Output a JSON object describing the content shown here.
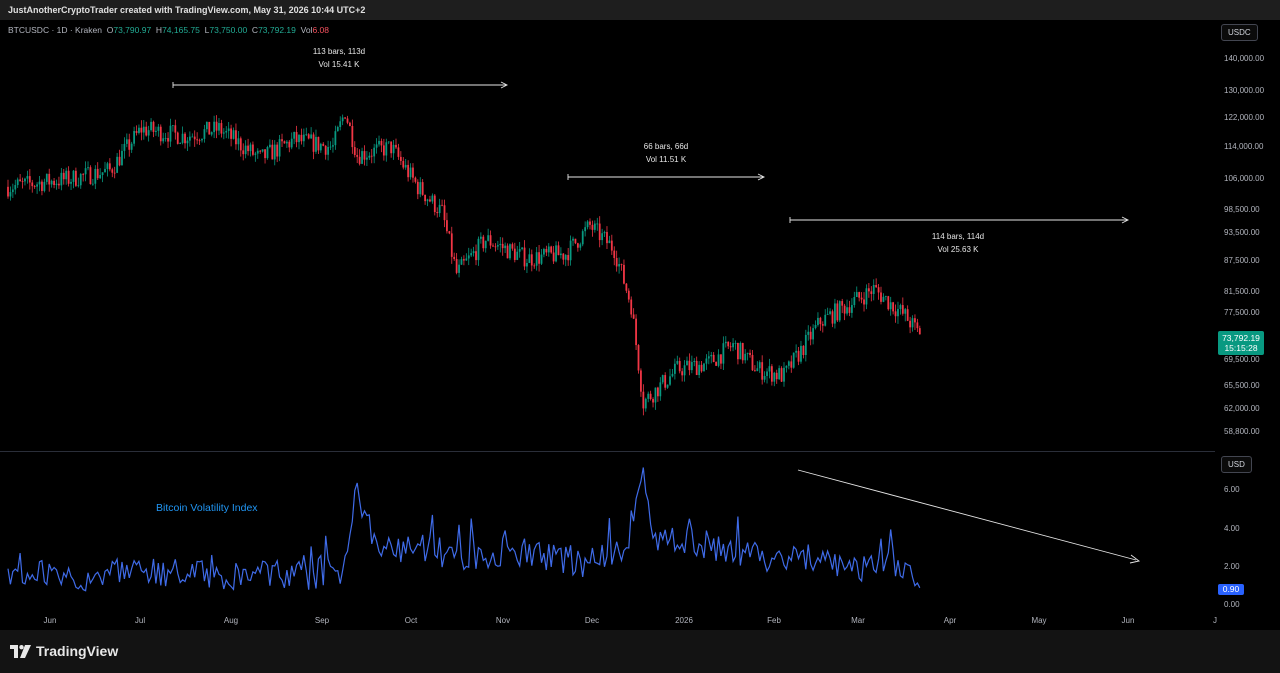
{
  "header": {
    "credit": "JustAnotherCryptoTrader created with TradingView.com, May 31, 2026 10:44 UTC+2"
  },
  "legend": {
    "symbol": "BTCUSDC · 1D · Kraken",
    "open_label": "O",
    "open": "73,790.97",
    "high_label": "H",
    "high": "74,165.75",
    "low_label": "L",
    "low": "73,750.00",
    "close_label": "C",
    "close": "73,792.19",
    "vol_label": "Vol",
    "vol": "6.08"
  },
  "price_axis": {
    "unit": "USDC",
    "ticks": [
      "140,000.00",
      "130,000.00",
      "122,000.00",
      "114,000.00",
      "106,000.00",
      "98,500.00",
      "93,500.00",
      "87,500.00",
      "81,500.00",
      "77,500.00",
      "69,500.00",
      "65,500.00",
      "62,000.00",
      "58,800.00"
    ],
    "last_price": "73,792.19",
    "countdown": "15:15:28"
  },
  "vol_axis": {
    "unit": "USD",
    "ticks": [
      "6.00",
      "4.00",
      "2.00",
      "0.00"
    ],
    "last_value": "0.90"
  },
  "x_axis": {
    "ticks": [
      "Jun",
      "Jul",
      "Aug",
      "Sep",
      "Oct",
      "Nov",
      "Dec",
      "2026",
      "Feb",
      "Mar",
      "Apr",
      "May",
      "Jun",
      "J"
    ]
  },
  "measures": [
    {
      "line1": "113 bars, 113d",
      "line2": "Vol 15.41 K"
    },
    {
      "line1": "66 bars, 66d",
      "line2": "Vol 11.51 K"
    },
    {
      "line1": "114 bars, 114d",
      "line2": "Vol 25.63 K"
    }
  ],
  "indicator": {
    "title": "Bitcoin Volatility Index"
  },
  "brand": {
    "name": "TradingView"
  },
  "colors": {
    "up": "#089981",
    "down": "#f23645",
    "volatility": "#3f6be8",
    "accent": "#2962ff"
  },
  "chart_data": [
    {
      "type": "candlestick",
      "symbol": "BTCUSDC",
      "interval": "1D",
      "exchange": "Kraken",
      "ylim": [
        57000,
        145000
      ],
      "y_scale": "log",
      "x": [
        "2025-05-20",
        "2025-06-15",
        "2025-07-01",
        "2025-07-14",
        "2025-08-01",
        "2025-08-15",
        "2025-09-01",
        "2025-09-15",
        "2025-10-01",
        "2025-10-06",
        "2025-10-11",
        "2025-10-25",
        "2025-11-05",
        "2025-11-15",
        "2025-11-21",
        "2025-12-03",
        "2025-12-20",
        "2026-01-05",
        "2026-01-15",
        "2026-01-25",
        "2026-02-01",
        "2026-02-06",
        "2026-02-20",
        "2026-03-05",
        "2026-03-15",
        "2026-03-25",
        "2026-04-05",
        "2026-04-20",
        "2026-05-05",
        "2026-05-12",
        "2026-05-25",
        "2026-05-31"
      ],
      "close": [
        104000,
        106000,
        108000,
        119000,
        117000,
        119000,
        111000,
        116000,
        114000,
        124000,
        112000,
        114000,
        104000,
        98000,
        85000,
        92000,
        88000,
        89000,
        95000,
        90000,
        79000,
        63000,
        68000,
        69000,
        72000,
        68000,
        67000,
        76000,
        80000,
        82000,
        77000,
        73792.19
      ]
    },
    {
      "type": "line",
      "series": [
        {
          "name": "Bitcoin Volatility Index"
        }
      ],
      "ylim": [
        0,
        7.5
      ],
      "x": [
        "2025-05-20",
        "2025-06-15",
        "2025-07-15",
        "2025-08-15",
        "2025-09-15",
        "2025-10-05",
        "2025-10-10",
        "2025-10-20",
        "2025-11-05",
        "2025-11-20",
        "2025-12-15",
        "2026-01-15",
        "2026-01-30",
        "2026-02-06",
        "2026-02-10",
        "2026-03-01",
        "2026-04-01",
        "2026-05-01",
        "2026-05-25",
        "2026-05-31"
      ],
      "values": [
        1.9,
        1.5,
        1.7,
        1.6,
        1.5,
        1.8,
        6.0,
        2.8,
        3.2,
        2.5,
        2.8,
        2.2,
        3.0,
        7.2,
        3.5,
        3.2,
        2.4,
        2.0,
        2.2,
        0.9
      ]
    }
  ]
}
